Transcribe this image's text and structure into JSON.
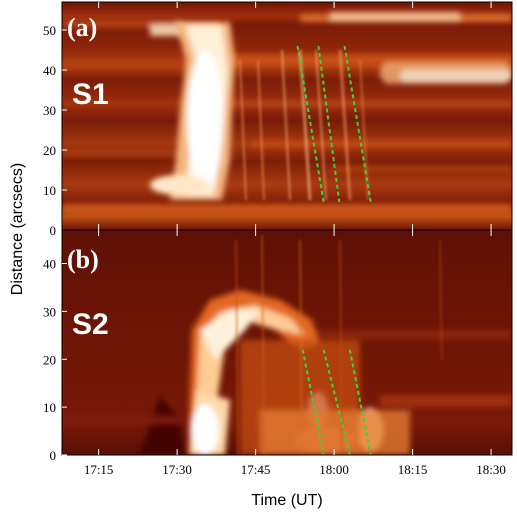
{
  "figure": {
    "panels": [
      {
        "id": "a",
        "tag": "(a)",
        "slit": "S1",
        "y_ticks": [
          "0",
          "10",
          "20",
          "30",
          "40",
          "50"
        ],
        "y_range": [
          0,
          57
        ],
        "tracks": 3
      },
      {
        "id": "b",
        "tag": "(b)",
        "slit": "S2",
        "y_ticks": [
          "0",
          "10",
          "20",
          "30",
          "40"
        ],
        "y_range": [
          0,
          47
        ],
        "tracks": 3
      }
    ],
    "x_ticks": [
      "17:15",
      "17:30",
      "17:45",
      "18:00",
      "18:15",
      "18:30"
    ],
    "x_range": [
      "17:08",
      "18:34"
    ],
    "xlabel": "Time (UT)",
    "ylabel": "Distance (arcsecs)",
    "colors": {
      "background": "#7a1a08",
      "mid": "#c44a12",
      "hot": "#ffd9a0",
      "track": "#3cd23c"
    }
  },
  "chart_data": {
    "type": "heatmap",
    "title": "",
    "xlabel": "Time (UT)",
    "ylabel": "Distance (arcsecs)",
    "x_ticks": [
      "17:15",
      "17:30",
      "17:45",
      "18:00",
      "18:15",
      "18:30"
    ],
    "panels": [
      {
        "label": "(a)",
        "slit": "S1",
        "ylim": [
          0,
          57
        ],
        "y_ticks": [
          0,
          10,
          20,
          30,
          40,
          50
        ],
        "tracks": [
          {
            "t_start": "17:53",
            "d_start": 46,
            "t_end": "17:58",
            "d_end": 7
          },
          {
            "t_start": "17:57",
            "d_start": 46,
            "t_end": "18:01",
            "d_end": 7
          },
          {
            "t_start": "18:02",
            "d_start": 46,
            "t_end": "18:07",
            "d_end": 7
          }
        ]
      },
      {
        "label": "(b)",
        "slit": "S2",
        "ylim": [
          0,
          47
        ],
        "y_ticks": [
          0,
          10,
          20,
          30,
          40
        ],
        "tracks": [
          {
            "t_start": "17:54",
            "d_start": 22,
            "t_end": "17:58",
            "d_end": 0
          },
          {
            "t_start": "17:58",
            "d_start": 22,
            "t_end": "18:03",
            "d_end": 0
          },
          {
            "t_start": "18:03",
            "d_start": 22,
            "t_end": "18:07",
            "d_end": 0
          }
        ]
      }
    ]
  }
}
